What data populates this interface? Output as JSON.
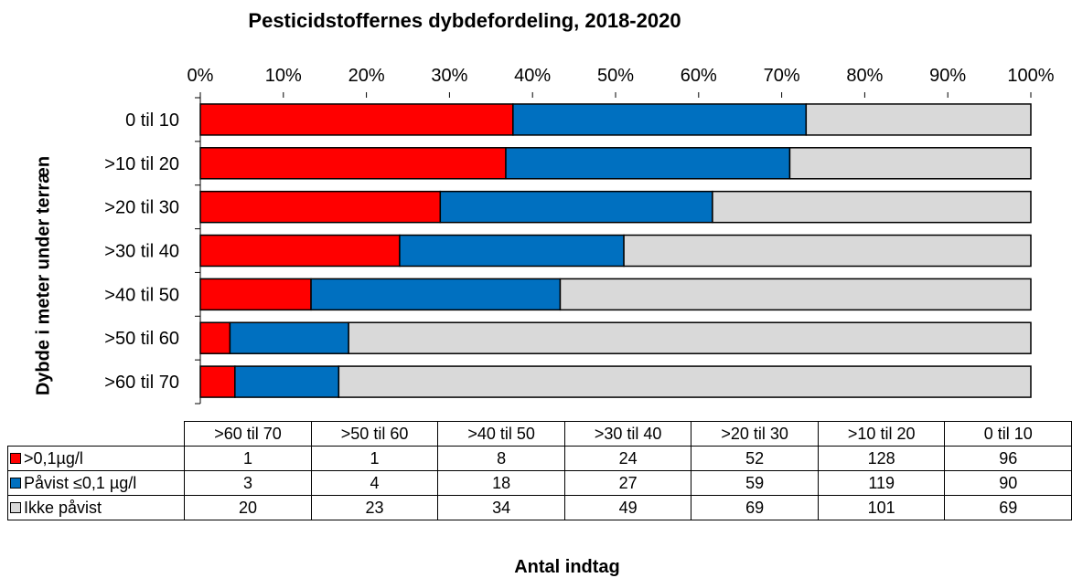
{
  "chart_data": {
    "type": "bar",
    "orientation": "horizontal",
    "stacked": "percent",
    "title": "Pesticidstoffernes dybdefordeling, 2018-2020",
    "xlabel": "Antal indtag",
    "ylabel": "Dybde i meter under  terræn",
    "x_ticks": [
      "0%",
      "10%",
      "20%",
      "30%",
      "40%",
      "50%",
      "60%",
      "70%",
      "80%",
      "90%",
      "100%"
    ],
    "xlim": [
      0,
      100
    ],
    "categories": [
      "0 til 10",
      ">10 til 20",
      ">20 til 30",
      ">30 til 40",
      ">40 til 50",
      ">50 til 60",
      ">60 til 70"
    ],
    "table_categories": [
      ">60 til 70",
      ">50 til 60",
      ">40 til 50",
      ">30 til 40",
      ">20 til 30",
      ">10 til 20",
      "0 til 10"
    ],
    "series": [
      {
        "name": ">0,1µg/l",
        "color": "#ff0000",
        "values": [
          96,
          128,
          52,
          24,
          8,
          1,
          1
        ]
      },
      {
        "name": "Påvist ≤0,1 µg/l",
        "color": "#0070c0",
        "values": [
          90,
          119,
          59,
          27,
          18,
          4,
          3
        ]
      },
      {
        "name": "Ikke påvist",
        "color": "#d9d9d9",
        "values": [
          69,
          101,
          69,
          49,
          34,
          23,
          20
        ]
      }
    ],
    "grid": false,
    "legend": "data-table"
  }
}
